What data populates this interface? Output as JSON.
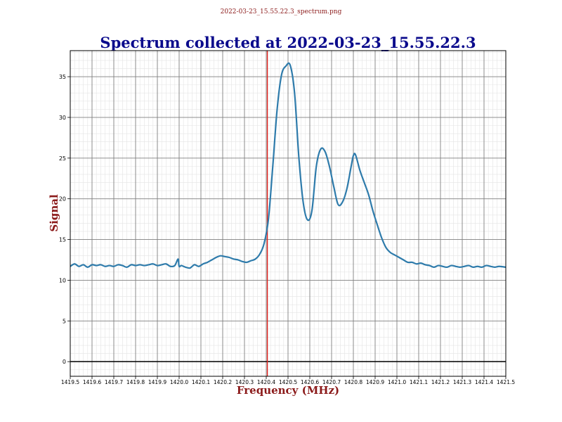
{
  "file_label": "2022-03-23_15.55.22.3_spectrum.png",
  "chart_data": {
    "type": "line",
    "title": "Spectrum collected at 2022-03-23_15.55.22.3",
    "xlabel": "Frequency (MHz)",
    "ylabel": "Signal",
    "xlim": [
      1419.5,
      1421.5
    ],
    "ylim": [
      -1.8,
      38.2
    ],
    "grid": true,
    "x_ticks": [
      "1419.5",
      "1419.6",
      "1419.7",
      "1419.8",
      "1419.9",
      "1420.0",
      "1420.1",
      "1420.2",
      "1420.3",
      "1420.4",
      "1420.5",
      "1420.6",
      "1420.7",
      "1420.8",
      "1420.9",
      "1421.0",
      "1421.1",
      "1421.2",
      "1421.3",
      "1421.4",
      "1421.5"
    ],
    "y_ticks": [
      "0",
      "5",
      "10",
      "15",
      "20",
      "25",
      "30",
      "35"
    ],
    "reference_line": {
      "x": 1420.405,
      "color": "#e0201b"
    },
    "zero_line": {
      "y": 0,
      "color": "#000000"
    },
    "series": [
      {
        "color": "#2e7bab",
        "x": [
          1419.5,
          1419.52,
          1419.54,
          1419.56,
          1419.58,
          1419.6,
          1419.62,
          1419.64,
          1419.66,
          1419.68,
          1419.7,
          1419.72,
          1419.74,
          1419.76,
          1419.78,
          1419.8,
          1419.82,
          1419.84,
          1419.86,
          1419.88,
          1419.9,
          1419.92,
          1419.94,
          1419.96,
          1419.98,
          1419.995,
          1420.0,
          1420.01,
          1420.03,
          1420.05,
          1420.07,
          1420.09,
          1420.11,
          1420.13,
          1420.15,
          1420.17,
          1420.19,
          1420.21,
          1420.23,
          1420.25,
          1420.27,
          1420.29,
          1420.31,
          1420.33,
          1420.35,
          1420.37,
          1420.39,
          1420.41,
          1420.43,
          1420.45,
          1420.47,
          1420.49,
          1420.51,
          1420.53,
          1420.55,
          1420.57,
          1420.59,
          1420.61,
          1420.63,
          1420.65,
          1420.67,
          1420.69,
          1420.71,
          1420.73,
          1420.75,
          1420.77,
          1420.79,
          1420.8,
          1420.81,
          1420.83,
          1420.85,
          1420.87,
          1420.89,
          1420.91,
          1420.93,
          1420.95,
          1420.97,
          1420.99,
          1421.01,
          1421.03,
          1421.05,
          1421.07,
          1421.09,
          1421.11,
          1421.13,
          1421.15,
          1421.17,
          1421.19,
          1421.21,
          1421.23,
          1421.25,
          1421.27,
          1421.29,
          1421.31,
          1421.33,
          1421.35,
          1421.37,
          1421.39,
          1421.41,
          1421.43,
          1421.45,
          1421.47,
          1421.5
        ],
        "y": [
          11.7,
          12.0,
          11.7,
          11.9,
          11.6,
          11.9,
          11.8,
          11.9,
          11.7,
          11.8,
          11.7,
          11.9,
          11.8,
          11.6,
          11.9,
          11.8,
          11.9,
          11.8,
          11.9,
          12.0,
          11.8,
          11.9,
          12.0,
          11.7,
          11.8,
          12.6,
          11.7,
          11.8,
          11.6,
          11.5,
          11.9,
          11.7,
          12.0,
          12.2,
          12.5,
          12.8,
          13.0,
          12.9,
          12.8,
          12.6,
          12.5,
          12.3,
          12.2,
          12.4,
          12.6,
          13.2,
          14.5,
          17.5,
          24.0,
          31.0,
          35.2,
          36.3,
          36.4,
          33.0,
          25.0,
          19.5,
          17.4,
          18.6,
          24.0,
          26.1,
          25.8,
          24.0,
          21.5,
          19.3,
          19.6,
          21.2,
          24.0,
          25.3,
          25.4,
          23.5,
          22.0,
          20.5,
          18.5,
          16.8,
          15.2,
          14.0,
          13.4,
          13.1,
          12.8,
          12.5,
          12.2,
          12.2,
          12.0,
          12.1,
          11.9,
          11.8,
          11.6,
          11.8,
          11.7,
          11.6,
          11.8,
          11.7,
          11.6,
          11.7,
          11.8,
          11.6,
          11.7,
          11.6,
          11.8,
          11.7,
          11.6,
          11.7,
          11.6
        ]
      }
    ]
  }
}
